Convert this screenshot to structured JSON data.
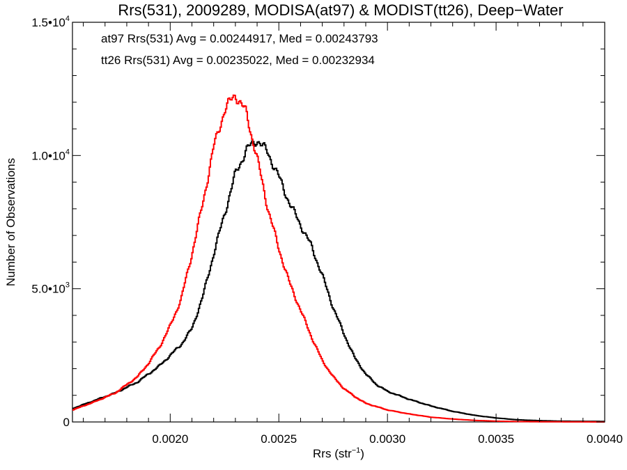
{
  "chart_data": {
    "type": "histogram",
    "title": "Rrs(531), 2009289, MODISA(at97) & MODIST(tt26), Deep−Water",
    "xlabel": {
      "base": "Rrs (str",
      "sup": "−1",
      "close": ")"
    },
    "ylabel": "Number of Observations",
    "xlim": [
      0.00155,
      0.004
    ],
    "ylim": [
      0,
      15000
    ],
    "x_ticks": [
      {
        "value": 0.002,
        "label": "0.0020"
      },
      {
        "value": 0.0025,
        "label": "0.0025"
      },
      {
        "value": 0.003,
        "label": "0.0030"
      },
      {
        "value": 0.0035,
        "label": "0.0035"
      },
      {
        "value": 0.004,
        "label": "0.0040"
      }
    ],
    "y_ticks": [
      {
        "value": 0,
        "base": "0",
        "exp": ""
      },
      {
        "value": 5000,
        "base": "5.0•10",
        "exp": "3"
      },
      {
        "value": 10000,
        "base": "1.0•10",
        "exp": "4"
      },
      {
        "value": 15000,
        "base": "1.5•10",
        "exp": "4"
      }
    ],
    "annotations": [
      {
        "text": "at97 Rrs(531) Avg = 0.00244917, Med = 0.00243793",
        "color": "#000000"
      },
      {
        "text": "tt26 Rrs(531) Avg = 0.00235022, Med = 0.00232934",
        "color": "#ff0000"
      }
    ],
    "series": [
      {
        "color": "#000000",
        "points": [
          [
            0.00155,
            500
          ],
          [
            0.00165,
            800
          ],
          [
            0.00175,
            1100
          ],
          [
            0.00185,
            1500
          ],
          [
            0.0019,
            1800
          ],
          [
            0.00195,
            2100
          ],
          [
            0.002,
            2500
          ],
          [
            0.00205,
            2900
          ],
          [
            0.0021,
            3500
          ],
          [
            0.00215,
            4700
          ],
          [
            0.0022,
            6300
          ],
          [
            0.00225,
            7800
          ],
          [
            0.0023,
            9300
          ],
          [
            0.00235,
            10200
          ],
          [
            0.0024,
            10600
          ],
          [
            0.00245,
            10100
          ],
          [
            0.0025,
            9200
          ],
          [
            0.00255,
            8200
          ],
          [
            0.0026,
            7400
          ],
          [
            0.00265,
            6600
          ],
          [
            0.0027,
            5500
          ],
          [
            0.00275,
            4300
          ],
          [
            0.0028,
            3300
          ],
          [
            0.00285,
            2400
          ],
          [
            0.0029,
            1800
          ],
          [
            0.00295,
            1400
          ],
          [
            0.003,
            1150
          ],
          [
            0.0031,
            850
          ],
          [
            0.0032,
            600
          ],
          [
            0.0033,
            400
          ],
          [
            0.0034,
            250
          ],
          [
            0.0035,
            150
          ],
          [
            0.0036,
            80
          ],
          [
            0.0037,
            50
          ],
          [
            0.0038,
            30
          ],
          [
            0.004,
            20
          ]
        ]
      },
      {
        "color": "#ff0000",
        "points": [
          [
            0.00155,
            450
          ],
          [
            0.00165,
            750
          ],
          [
            0.00175,
            1100
          ],
          [
            0.00185,
            1700
          ],
          [
            0.0019,
            2200
          ],
          [
            0.00195,
            2800
          ],
          [
            0.002,
            3600
          ],
          [
            0.00205,
            4600
          ],
          [
            0.0021,
            6300
          ],
          [
            0.00215,
            8200
          ],
          [
            0.0022,
            10300
          ],
          [
            0.00225,
            11700
          ],
          [
            0.0023,
            12300
          ],
          [
            0.00235,
            11600
          ],
          [
            0.0024,
            9900
          ],
          [
            0.00245,
            8000
          ],
          [
            0.0025,
            6500
          ],
          [
            0.00255,
            5200
          ],
          [
            0.0026,
            4200
          ],
          [
            0.00265,
            3200
          ],
          [
            0.0027,
            2300
          ],
          [
            0.00275,
            1700
          ],
          [
            0.0028,
            1250
          ],
          [
            0.00285,
            950
          ],
          [
            0.0029,
            700
          ],
          [
            0.003,
            450
          ],
          [
            0.0031,
            300
          ],
          [
            0.0032,
            180
          ],
          [
            0.0033,
            110
          ],
          [
            0.0034,
            60
          ],
          [
            0.0035,
            30
          ],
          [
            0.0036,
            15
          ],
          [
            0.0037,
            8
          ],
          [
            0.0038,
            5
          ],
          [
            0.004,
            0
          ]
        ]
      }
    ]
  }
}
